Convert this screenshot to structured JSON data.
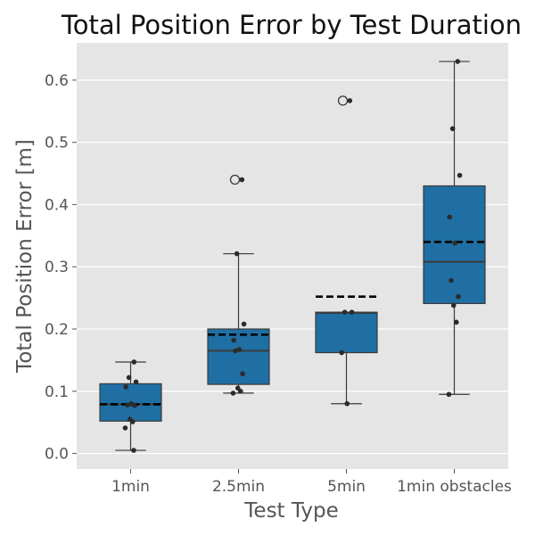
{
  "chart_data": {
    "type": "box",
    "title": "Total Position Error by Test Duration",
    "xlabel": "Test Type",
    "ylabel": "Total Position Error [m]",
    "ylim": [
      -0.025,
      0.66
    ],
    "yticks": [
      0.0,
      0.1,
      0.2,
      0.3,
      0.4,
      0.5,
      0.6
    ],
    "ytick_labels": [
      "0.0",
      "0.1",
      "0.2",
      "0.3",
      "0.4",
      "0.5",
      "0.6"
    ],
    "grid": true,
    "legend": "none",
    "mean_line": "dashed",
    "categories": [
      "1min",
      "2.5min",
      "5min",
      "1min obstacles"
    ],
    "boxes": [
      {
        "category": "1min",
        "whisker_low": 0.005,
        "q1": 0.052,
        "median": 0.079,
        "mean": 0.079,
        "q3": 0.112,
        "whisker_high": 0.147,
        "outliers": []
      },
      {
        "category": "2.5min",
        "whisker_low": 0.097,
        "q1": 0.111,
        "median": 0.165,
        "mean": 0.191,
        "q3": 0.2,
        "whisker_high": 0.321,
        "outliers": [
          0.44
        ]
      },
      {
        "category": "5min",
        "whisker_low": 0.08,
        "q1": 0.162,
        "median": 0.226,
        "mean": 0.252,
        "q3": 0.227,
        "whisker_high": 0.227,
        "outliers": [
          0.567
        ]
      },
      {
        "category": "1min obstacles",
        "whisker_low": 0.095,
        "q1": 0.241,
        "median": 0.308,
        "mean": 0.34,
        "q3": 0.43,
        "whisker_high": 0.63,
        "outliers": []
      }
    ],
    "points": [
      {
        "category": "1min",
        "values": [
          0.147,
          0.122,
          0.115,
          0.107,
          0.08,
          0.078,
          0.077,
          0.055,
          0.051,
          0.041,
          0.005
        ]
      },
      {
        "category": "2.5min",
        "values": [
          0.44,
          0.321,
          0.208,
          0.182,
          0.167,
          0.165,
          0.128,
          0.105,
          0.1,
          0.097
        ]
      },
      {
        "category": "5min",
        "values": [
          0.567,
          0.227,
          0.227,
          0.162,
          0.08
        ]
      },
      {
        "category": "1min obstacles",
        "values": [
          0.63,
          0.522,
          0.447,
          0.38,
          0.338,
          0.278,
          0.252,
          0.238,
          0.211,
          0.095
        ]
      }
    ],
    "colors": {
      "box_fill": "#1f6fa4",
      "box_edge": "#3a3a3a",
      "mean_line": "#000000",
      "point": "#2b2b2b",
      "plot_background": "#e5e5e5",
      "grid": "#ffffff"
    }
  }
}
